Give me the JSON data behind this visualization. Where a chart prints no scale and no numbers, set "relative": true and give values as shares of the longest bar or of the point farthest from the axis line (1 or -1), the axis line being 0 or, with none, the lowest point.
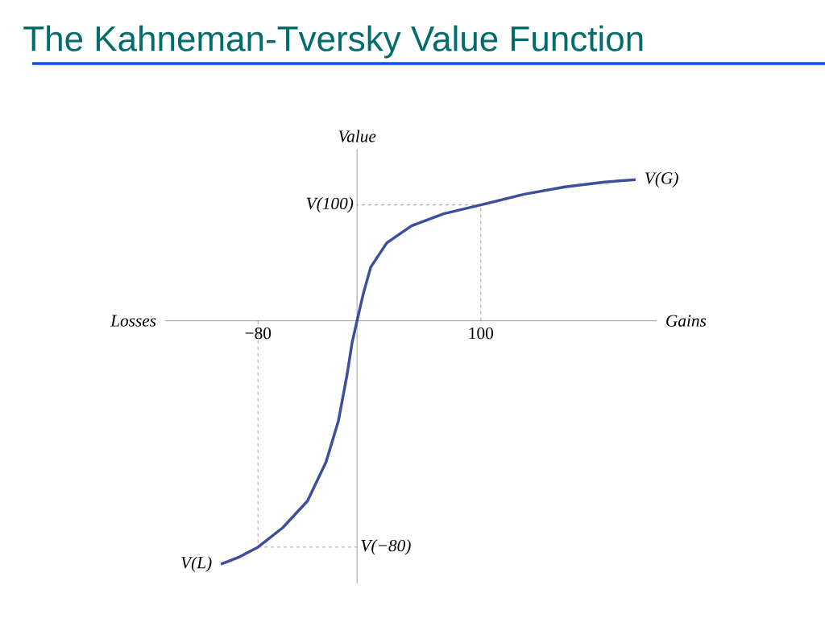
{
  "chart_data": {
    "type": "line",
    "title": "The Kahneman-Tversky Value Function",
    "xlabel": "Gains",
    "ylabel": "Value",
    "relative": true,
    "x": [
      -110,
      -95,
      -80,
      -60,
      -40,
      -25,
      -15,
      -8,
      -4,
      0,
      5,
      11,
      24,
      44,
      70,
      100,
      135,
      168,
      200,
      225
    ],
    "series": [
      {
        "color": "#3d4f9c",
        "values": [
          -1.0,
          -0.97,
          -0.93,
          -0.85,
          -0.74,
          -0.58,
          -0.41,
          -0.22,
          -0.09,
          0,
          0.11,
          0.22,
          0.32,
          0.39,
          0.44,
          0.476,
          0.52,
          0.55,
          0.57,
          0.58
        ]
      }
    ],
    "xlim": [
      -155,
      242
    ],
    "xticks": [
      {
        "value": -80,
        "label": "−80"
      },
      100
    ],
    "ref_lines": [
      {
        "axis": "x",
        "value": 100,
        "line_style": "dashed"
      },
      {
        "axis": "y",
        "value": 0.476,
        "label": "V(100)",
        "line_style": "dashed"
      },
      {
        "axis": "x",
        "value": -80,
        "line_style": "dashed"
      },
      {
        "axis": "y",
        "value": -0.93,
        "label": "V(−80)",
        "line_style": "dashed"
      }
    ],
    "annotations": [
      "Losses",
      {
        "text": "V(G)",
        "x": 225,
        "y": 0.58
      },
      {
        "text": "V(L)",
        "x": -110,
        "y": -1.0
      }
    ],
    "marker": "none",
    "line_style": "solid"
  }
}
